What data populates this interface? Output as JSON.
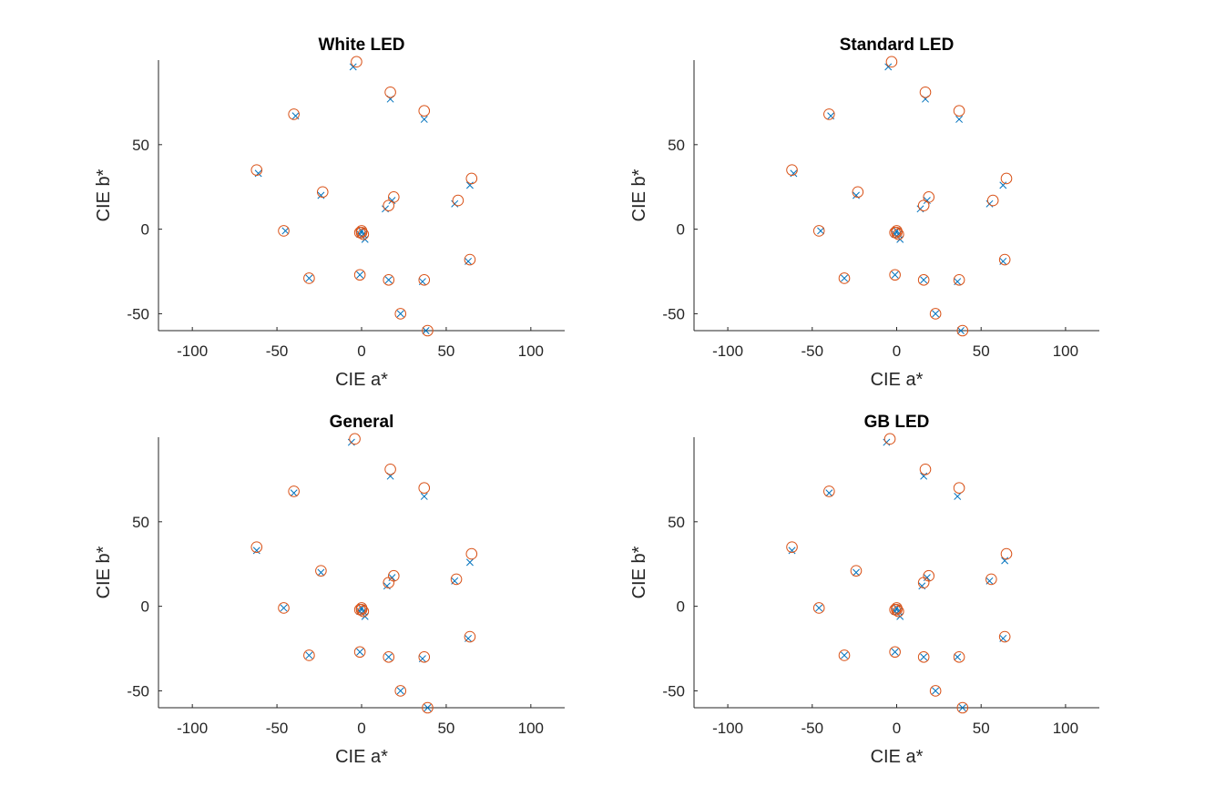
{
  "colors": {
    "cross": "#0072BD",
    "circle": "#D95319",
    "axis": "#262626"
  },
  "chart_data": [
    {
      "type": "scatter",
      "title": "White LED",
      "xlabel": "CIE a*",
      "ylabel": "CIE b*",
      "xlim": [
        -120,
        120
      ],
      "ylim": [
        -60,
        100
      ],
      "xticks": [
        -100,
        -50,
        0,
        50,
        100
      ],
      "yticks": [
        -50,
        0,
        50
      ],
      "grid": false,
      "series": [
        {
          "marker": "x",
          "points": [
            [
              -5,
              96
            ],
            [
              17,
              77
            ],
            [
              37,
              65
            ],
            [
              -39,
              67
            ],
            [
              -61,
              33
            ],
            [
              -24,
              20
            ],
            [
              18,
              17
            ],
            [
              14,
              12
            ],
            [
              55,
              15
            ],
            [
              64,
              26
            ],
            [
              -45,
              -1
            ],
            [
              0,
              -1
            ],
            [
              1,
              -3
            ],
            [
              2,
              -6
            ],
            [
              -1,
              -3
            ],
            [
              63,
              -19
            ],
            [
              -31,
              -29
            ],
            [
              -1,
              -27
            ],
            [
              16,
              -30
            ],
            [
              36,
              -31
            ],
            [
              23,
              -50
            ],
            [
              38,
              -60
            ]
          ]
        },
        {
          "marker": "o",
          "points": [
            [
              -3,
              99
            ],
            [
              17,
              81
            ],
            [
              37,
              70
            ],
            [
              -40,
              68
            ],
            [
              -62,
              35
            ],
            [
              -23,
              22
            ],
            [
              19,
              19
            ],
            [
              16,
              14
            ],
            [
              57,
              17
            ],
            [
              65,
              30
            ],
            [
              -46,
              -1
            ],
            [
              0,
              -1
            ],
            [
              0,
              -2
            ],
            [
              1,
              -3
            ],
            [
              -1,
              -2
            ],
            [
              64,
              -18
            ],
            [
              -31,
              -29
            ],
            [
              -1,
              -27
            ],
            [
              16,
              -30
            ],
            [
              37,
              -30
            ],
            [
              23,
              -50
            ],
            [
              39,
              -60
            ]
          ]
        }
      ]
    },
    {
      "type": "scatter",
      "title": "Standard LED",
      "xlabel": "CIE a*",
      "ylabel": "CIE b*",
      "xlim": [
        -120,
        120
      ],
      "ylim": [
        -60,
        100
      ],
      "xticks": [
        -100,
        -50,
        0,
        50,
        100
      ],
      "yticks": [
        -50,
        0,
        50
      ],
      "grid": false,
      "series": [
        {
          "marker": "x",
          "points": [
            [
              -5,
              96
            ],
            [
              17,
              77
            ],
            [
              37,
              65
            ],
            [
              -39,
              67
            ],
            [
              -61,
              33
            ],
            [
              -24,
              20
            ],
            [
              18,
              17
            ],
            [
              14,
              12
            ],
            [
              55,
              15
            ],
            [
              63,
              26
            ],
            [
              -45,
              -1
            ],
            [
              0,
              -1
            ],
            [
              1,
              -3
            ],
            [
              2,
              -6
            ],
            [
              -1,
              -3
            ],
            [
              63,
              -19
            ],
            [
              -31,
              -29
            ],
            [
              -1,
              -27
            ],
            [
              16,
              -30
            ],
            [
              36,
              -31
            ],
            [
              23,
              -50
            ],
            [
              38,
              -60
            ]
          ]
        },
        {
          "marker": "o",
          "points": [
            [
              -3,
              99
            ],
            [
              17,
              81
            ],
            [
              37,
              70
            ],
            [
              -40,
              68
            ],
            [
              -62,
              35
            ],
            [
              -23,
              22
            ],
            [
              19,
              19
            ],
            [
              16,
              14
            ],
            [
              57,
              17
            ],
            [
              65,
              30
            ],
            [
              -46,
              -1
            ],
            [
              0,
              -1
            ],
            [
              0,
              -2
            ],
            [
              1,
              -3
            ],
            [
              -1,
              -2
            ],
            [
              64,
              -18
            ],
            [
              -31,
              -29
            ],
            [
              -1,
              -27
            ],
            [
              16,
              -30
            ],
            [
              37,
              -30
            ],
            [
              23,
              -50
            ],
            [
              39,
              -60
            ]
          ]
        }
      ]
    },
    {
      "type": "scatter",
      "title": "General",
      "xlabel": "CIE a*",
      "ylabel": "CIE b*",
      "xlim": [
        -120,
        120
      ],
      "ylim": [
        -60,
        100
      ],
      "xticks": [
        -100,
        -50,
        0,
        50,
        100
      ],
      "yticks": [
        -50,
        0,
        50
      ],
      "grid": false,
      "series": [
        {
          "marker": "x",
          "points": [
            [
              -6,
              97
            ],
            [
              17,
              77
            ],
            [
              37,
              65
            ],
            [
              -40,
              67
            ],
            [
              -62,
              33
            ],
            [
              -24,
              20
            ],
            [
              18,
              17
            ],
            [
              15,
              12
            ],
            [
              55,
              15
            ],
            [
              64,
              26
            ],
            [
              -46,
              -1
            ],
            [
              0,
              -1
            ],
            [
              1,
              -3
            ],
            [
              2,
              -6
            ],
            [
              -1,
              -3
            ],
            [
              63,
              -19
            ],
            [
              -31,
              -29
            ],
            [
              -1,
              -27
            ],
            [
              16,
              -30
            ],
            [
              36,
              -31
            ],
            [
              23,
              -50
            ],
            [
              39,
              -60
            ]
          ]
        },
        {
          "marker": "o",
          "points": [
            [
              -4,
              99
            ],
            [
              17,
              81
            ],
            [
              37,
              70
            ],
            [
              -40,
              68
            ],
            [
              -62,
              35
            ],
            [
              -24,
              21
            ],
            [
              19,
              18
            ],
            [
              16,
              14
            ],
            [
              56,
              16
            ],
            [
              65,
              31
            ],
            [
              -46,
              -1
            ],
            [
              0,
              -1
            ],
            [
              0,
              -2
            ],
            [
              1,
              -3
            ],
            [
              -1,
              -2
            ],
            [
              64,
              -18
            ],
            [
              -31,
              -29
            ],
            [
              -1,
              -27
            ],
            [
              16,
              -30
            ],
            [
              37,
              -30
            ],
            [
              23,
              -50
            ],
            [
              39,
              -60
            ]
          ]
        }
      ]
    },
    {
      "type": "scatter",
      "title": "GB LED",
      "xlabel": "CIE a*",
      "ylabel": "CIE b*",
      "xlim": [
        -120,
        120
      ],
      "ylim": [
        -60,
        100
      ],
      "xticks": [
        -100,
        -50,
        0,
        50,
        100
      ],
      "yticks": [
        -50,
        0,
        50
      ],
      "grid": false,
      "series": [
        {
          "marker": "x",
          "points": [
            [
              -6,
              97
            ],
            [
              16,
              77
            ],
            [
              36,
              65
            ],
            [
              -40,
              67
            ],
            [
              -62,
              33
            ],
            [
              -24,
              20
            ],
            [
              18,
              17
            ],
            [
              15,
              12
            ],
            [
              55,
              15
            ],
            [
              64,
              27
            ],
            [
              -46,
              -1
            ],
            [
              0,
              -1
            ],
            [
              1,
              -3
            ],
            [
              2,
              -6
            ],
            [
              -1,
              -3
            ],
            [
              63,
              -19
            ],
            [
              -31,
              -29
            ],
            [
              -1,
              -27
            ],
            [
              16,
              -30
            ],
            [
              36,
              -30
            ],
            [
              23,
              -50
            ],
            [
              39,
              -60
            ]
          ]
        },
        {
          "marker": "o",
          "points": [
            [
              -4,
              99
            ],
            [
              17,
              81
            ],
            [
              37,
              70
            ],
            [
              -40,
              68
            ],
            [
              -62,
              35
            ],
            [
              -24,
              21
            ],
            [
              19,
              18
            ],
            [
              16,
              14
            ],
            [
              56,
              16
            ],
            [
              65,
              31
            ],
            [
              -46,
              -1
            ],
            [
              0,
              -1
            ],
            [
              0,
              -2
            ],
            [
              1,
              -3
            ],
            [
              -1,
              -2
            ],
            [
              64,
              -18
            ],
            [
              -31,
              -29
            ],
            [
              -1,
              -27
            ],
            [
              16,
              -30
            ],
            [
              37,
              -30
            ],
            [
              23,
              -50
            ],
            [
              39,
              -60
            ]
          ]
        }
      ]
    }
  ]
}
